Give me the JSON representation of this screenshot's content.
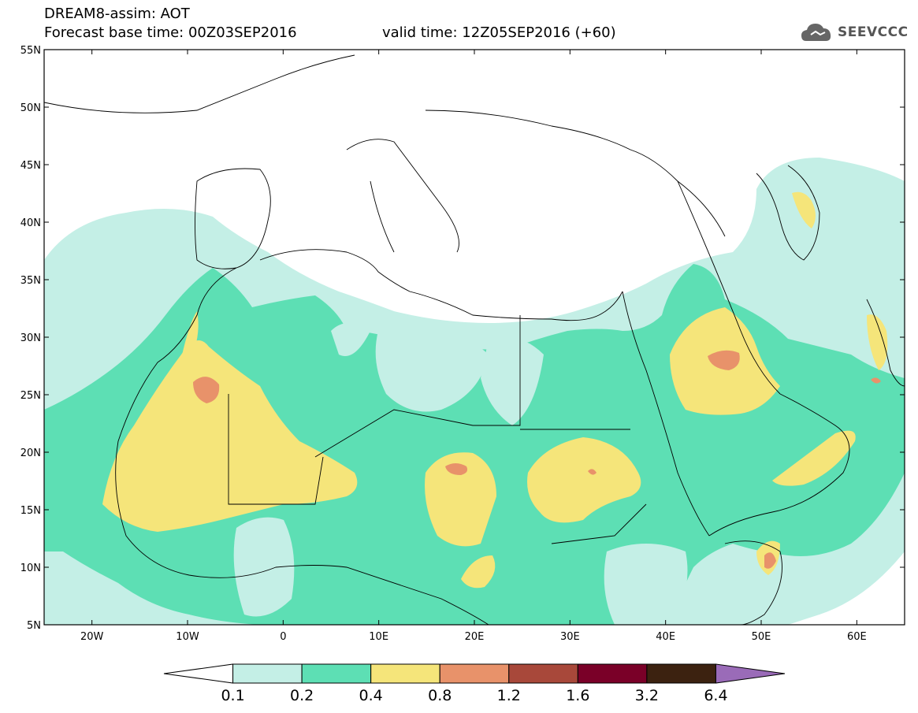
{
  "header": {
    "line1": "DREAM8-assim: AOT",
    "line2": "Forecast base time: 00Z03SEP2016",
    "valid": "valid time: 12Z05SEP2016 (+60)",
    "logo": "SEEVCCC"
  },
  "map": {
    "projection": "latitude-longitude",
    "lon_range": [
      -25,
      65
    ],
    "lat_range": [
      5,
      55
    ],
    "lat_ticks": [
      "55N",
      "50N",
      "45N",
      "40N",
      "35N",
      "30N",
      "25N",
      "20N",
      "15N",
      "10N",
      "5N"
    ],
    "lon_ticks": [
      "20W",
      "10W",
      "0",
      "10E",
      "20E",
      "30E",
      "40E",
      "50E",
      "60E"
    ]
  },
  "colorbar": {
    "levels": [
      "0.1",
      "0.2",
      "0.4",
      "0.8",
      "1.2",
      "1.6",
      "3.2",
      "6.4"
    ],
    "colors": [
      "#ffffff",
      "#c4efe6",
      "#5ddfb4",
      "#f5e57a",
      "#e8926a",
      "#a8483a",
      "#7a0028",
      "#3c2210",
      "#9a6bb8"
    ]
  },
  "palette": {
    "c1": "#c4efe6",
    "c2": "#5ddfb4",
    "c3": "#f5e57a",
    "c4": "#e8926a",
    "c5": "#a8483a"
  }
}
